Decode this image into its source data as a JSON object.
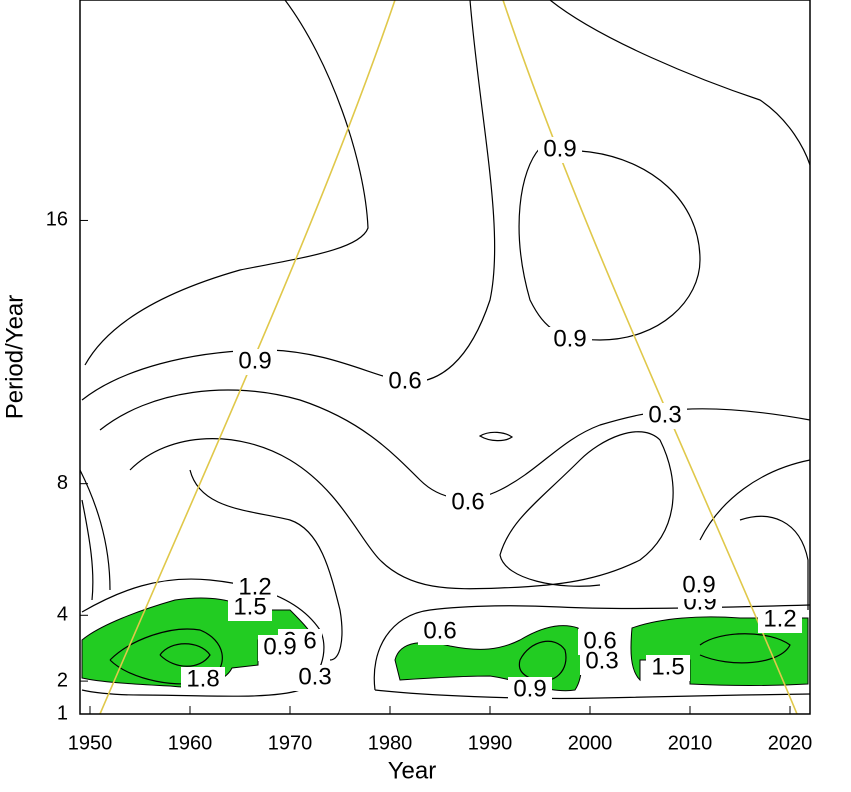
{
  "chart_data": {
    "type": "contour",
    "xlabel": "Year",
    "ylabel": "Period/Year",
    "xlim": [
      1949,
      2022
    ],
    "xticks": [
      1950,
      1960,
      1970,
      1980,
      1990,
      2000,
      2010,
      2020
    ],
    "ylim": [
      1,
      22.7
    ],
    "yticks": [
      1,
      2,
      4,
      8,
      16
    ],
    "contour_labels": [
      0.9,
      0.9,
      0.9,
      0.6,
      0.3,
      0.6,
      1.2,
      1.5,
      0.9,
      0.6,
      0.3,
      0.6,
      0.9,
      0.6,
      0.3,
      0.9,
      1.2,
      1.5,
      1.8,
      0.9
    ],
    "fill_color": "#22cc22",
    "coi_color": "#e0c84a"
  }
}
